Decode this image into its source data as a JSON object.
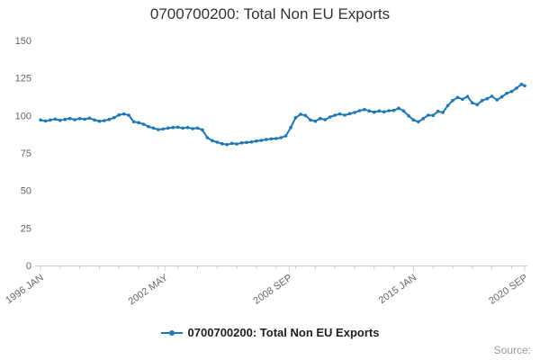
{
  "title": "0700700200: Total Non EU Exports",
  "legend": {
    "label": "0700700200: Total Non EU Exports"
  },
  "source_label": "Source:",
  "colors": {
    "line": "#1f77b4",
    "axis": "#cccccc",
    "tick_label": "#666666",
    "title": "#333333",
    "legend_text": "#222222",
    "source": "#999999"
  },
  "chart_data": {
    "type": "line",
    "title": "0700700200: Total Non EU Exports",
    "xlabel": "",
    "ylabel": "",
    "x_unit": "months since 1996 JAN",
    "x_range": [
      0,
      296
    ],
    "ylim": [
      0,
      150
    ],
    "y_ticks": [
      0,
      25,
      50,
      75,
      100,
      125,
      150
    ],
    "x_ticks": [
      {
        "month": 0,
        "label": "1996 JAN"
      },
      {
        "month": 76,
        "label": "2002 MAY"
      },
      {
        "month": 152,
        "label": "2008 SEP"
      },
      {
        "month": 228,
        "label": "2015 JAN"
      },
      {
        "month": 296,
        "label": "2020 SEP"
      }
    ],
    "minor_tick_interval_months": 12,
    "grid": false,
    "legend_position": "bottom",
    "marker": "circle",
    "series": [
      {
        "name": "0700700200: Total Non EU Exports",
        "points": [
          [
            0,
            97
          ],
          [
            3,
            96.3
          ],
          [
            6,
            97
          ],
          [
            9,
            97.6
          ],
          [
            12,
            96.8
          ],
          [
            15,
            97.4
          ],
          [
            18,
            98
          ],
          [
            21,
            97.2
          ],
          [
            24,
            98
          ],
          [
            27,
            97.5
          ],
          [
            30,
            98.2
          ],
          [
            33,
            97
          ],
          [
            36,
            96.2
          ],
          [
            39,
            96.6
          ],
          [
            42,
            97.4
          ],
          [
            45,
            98.6
          ],
          [
            48,
            100.4
          ],
          [
            51,
            101
          ],
          [
            54,
            100.2
          ],
          [
            57,
            95.8
          ],
          [
            60,
            95.2
          ],
          [
            63,
            94.2
          ],
          [
            66,
            92.6
          ],
          [
            69,
            91.6
          ],
          [
            72,
            90.6
          ],
          [
            75,
            91
          ],
          [
            78,
            91.6
          ],
          [
            81,
            92
          ],
          [
            84,
            92.2
          ],
          [
            87,
            91.6
          ],
          [
            90,
            92
          ],
          [
            93,
            91.2
          ],
          [
            96,
            91.6
          ],
          [
            99,
            90.4
          ],
          [
            102,
            85.2
          ],
          [
            105,
            83.2
          ],
          [
            108,
            82.2
          ],
          [
            111,
            81.2
          ],
          [
            114,
            80.6
          ],
          [
            117,
            81.4
          ],
          [
            120,
            81
          ],
          [
            123,
            81.8
          ],
          [
            126,
            82
          ],
          [
            129,
            82.4
          ],
          [
            132,
            83
          ],
          [
            135,
            83.4
          ],
          [
            138,
            84
          ],
          [
            141,
            84.4
          ],
          [
            144,
            84.6
          ],
          [
            147,
            85.2
          ],
          [
            150,
            86.4
          ],
          [
            153,
            92
          ],
          [
            156,
            98.6
          ],
          [
            159,
            100.8
          ],
          [
            162,
            100
          ],
          [
            165,
            97
          ],
          [
            168,
            96.2
          ],
          [
            171,
            98
          ],
          [
            174,
            97.2
          ],
          [
            177,
            99
          ],
          [
            180,
            100.2
          ],
          [
            183,
            101
          ],
          [
            186,
            100.2
          ],
          [
            189,
            101.2
          ],
          [
            192,
            102
          ],
          [
            195,
            103.2
          ],
          [
            198,
            104
          ],
          [
            201,
            103
          ],
          [
            204,
            102.2
          ],
          [
            207,
            103
          ],
          [
            210,
            102.4
          ],
          [
            213,
            103.2
          ],
          [
            216,
            103.4
          ],
          [
            219,
            104.8
          ],
          [
            222,
            103
          ],
          [
            225,
            99.8
          ],
          [
            228,
            97
          ],
          [
            231,
            95.8
          ],
          [
            234,
            98
          ],
          [
            237,
            100.2
          ],
          [
            240,
            100
          ],
          [
            243,
            102.8
          ],
          [
            246,
            102
          ],
          [
            249,
            106.6
          ],
          [
            252,
            110
          ],
          [
            255,
            112
          ],
          [
            258,
            110.8
          ],
          [
            261,
            112.6
          ],
          [
            264,
            108.4
          ],
          [
            267,
            107.2
          ],
          [
            270,
            110
          ],
          [
            273,
            111.2
          ],
          [
            276,
            112.8
          ],
          [
            279,
            110.4
          ],
          [
            282,
            112.4
          ],
          [
            285,
            114.8
          ],
          [
            288,
            116
          ],
          [
            291,
            118.2
          ],
          [
            294,
            120.8
          ],
          [
            296,
            119.8
          ]
        ]
      }
    ]
  }
}
